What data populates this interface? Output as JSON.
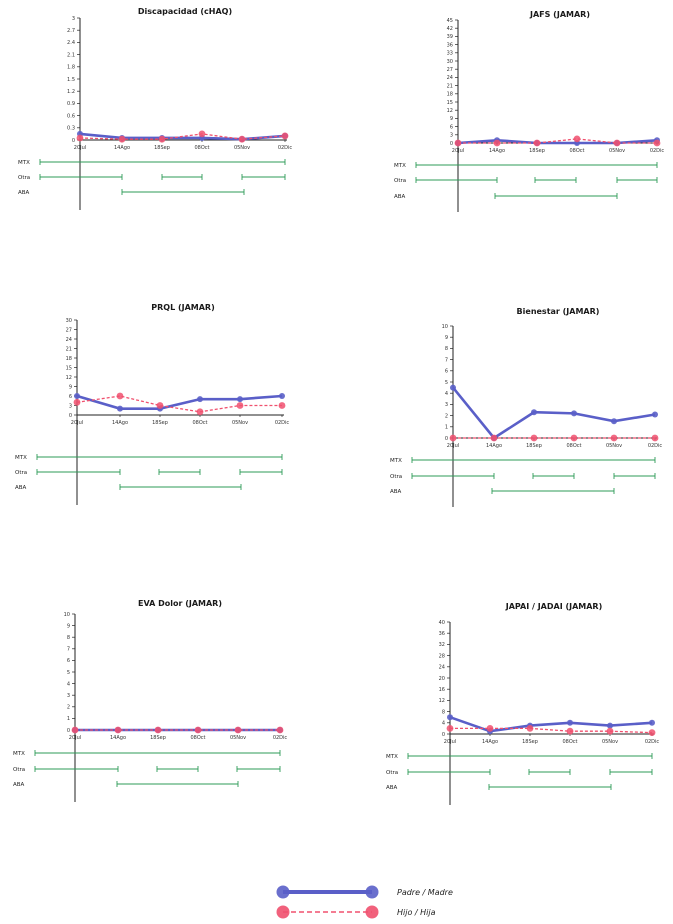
{
  "chart_data": [
    {
      "type": "line",
      "title": "Discapacidad (cHAQ)",
      "yticks": [
        "0",
        "0.3",
        "0.6",
        "0.9",
        "1.2",
        "1.5",
        "1.8",
        "2.1",
        "2.4",
        "2.7",
        "3"
      ],
      "ylim": [
        0,
        3
      ],
      "categories": [
        "20Jul",
        "14Ago",
        "18Sep",
        "08Oct",
        "05Nov",
        "02Dic"
      ],
      "series": [
        {
          "name": "Padre / Madre",
          "values": [
            0.15,
            0.05,
            0.05,
            0.05,
            0.02,
            0.1
          ]
        },
        {
          "name": "Hijo / Hija",
          "values": [
            0.05,
            0.02,
            0.02,
            0.15,
            0.02,
            0.1
          ]
        }
      ],
      "treatments": [
        "MTX",
        "Otra",
        "ABA"
      ]
    },
    {
      "type": "line",
      "title": "JAFS (JAMAR)",
      "yticks": [
        "0",
        "3",
        "6",
        "9",
        "12",
        "15",
        "18",
        "21",
        "24",
        "27",
        "30",
        "33",
        "36",
        "39",
        "42",
        "45"
      ],
      "ylim": [
        0,
        45
      ],
      "categories": [
        "20Jul",
        "14Ago",
        "18Sep",
        "08Oct",
        "05Nov",
        "02Dic"
      ],
      "series": [
        {
          "name": "Padre / Madre",
          "values": [
            0,
            1,
            0,
            0,
            0,
            1
          ]
        },
        {
          "name": "Hijo / Hija",
          "values": [
            0,
            0,
            0,
            1.5,
            0,
            0
          ]
        }
      ],
      "treatments": [
        "MTX",
        "Otra",
        "ABA"
      ]
    },
    {
      "type": "line",
      "title": "PRQL (JAMAR)",
      "yticks": [
        "0",
        "3",
        "6",
        "9",
        "12",
        "15",
        "18",
        "21",
        "24",
        "27",
        "30"
      ],
      "ylim": [
        0,
        30
      ],
      "categories": [
        "20Jul",
        "14Ago",
        "18Sep",
        "08Oct",
        "05Nov",
        "02Dic"
      ],
      "series": [
        {
          "name": "Padre / Madre",
          "values": [
            6,
            2,
            2,
            5,
            5,
            6
          ]
        },
        {
          "name": "Hijo / Hija",
          "values": [
            4,
            6,
            3,
            1,
            3,
            3
          ]
        }
      ],
      "treatments": [
        "MTX",
        "Otra",
        "ABA"
      ]
    },
    {
      "type": "line",
      "title": "Bienestar (JAMAR)",
      "yticks": [
        "0",
        "1",
        "2",
        "3",
        "4",
        "5",
        "6",
        "7",
        "8",
        "9",
        "10"
      ],
      "ylim": [
        0,
        10
      ],
      "categories": [
        "20Jul",
        "14Ago",
        "18Sep",
        "08Oct",
        "05Nov",
        "02Dic"
      ],
      "series": [
        {
          "name": "Padre / Madre",
          "values": [
            4.5,
            0,
            2.3,
            2.2,
            1.5,
            2.1
          ]
        },
        {
          "name": "Hijo / Hija",
          "values": [
            0,
            0,
            0,
            0,
            0,
            0
          ]
        }
      ],
      "treatments": [
        "MTX",
        "Otra",
        "ABA"
      ]
    },
    {
      "type": "line",
      "title": "EVA Dolor (JAMAR)",
      "yticks": [
        "0",
        "1",
        "2",
        "3",
        "4",
        "5",
        "6",
        "7",
        "8",
        "9",
        "10"
      ],
      "ylim": [
        0,
        10
      ],
      "categories": [
        "20Jul",
        "14Ago",
        "18Sep",
        "08Oct",
        "05Nov",
        "02Dic"
      ],
      "series": [
        {
          "name": "Padre / Madre",
          "values": [
            0,
            0,
            0,
            0,
            0,
            0
          ]
        },
        {
          "name": "Hijo / Hija",
          "values": [
            0,
            0,
            0,
            0,
            0,
            0
          ]
        }
      ],
      "treatments": [
        "MTX",
        "Otra",
        "ABA"
      ]
    },
    {
      "type": "line",
      "title": "JAPAI / JADAI (JAMAR)",
      "yticks": [
        "0",
        "4",
        "8",
        "12",
        "16",
        "20",
        "24",
        "28",
        "32",
        "36",
        "40"
      ],
      "ylim": [
        0,
        40
      ],
      "categories": [
        "20Jul",
        "14Ago",
        "18Sep",
        "08Oct",
        "05Nov",
        "02Dic"
      ],
      "series": [
        {
          "name": "Padre / Madre",
          "values": [
            6,
            1,
            3,
            4,
            3,
            4
          ]
        },
        {
          "name": "Hijo / Hija",
          "values": [
            2,
            2,
            2,
            1,
            1,
            0.5
          ]
        }
      ],
      "treatments": [
        "MTX",
        "Otra",
        "ABA"
      ]
    }
  ],
  "legend": [
    {
      "label": "Padre / Madre",
      "color": "#5a5fc8"
    },
    {
      "label": "Hijo / Hija",
      "color": "#f0506e"
    }
  ],
  "colors": {
    "parent": "#5a5fc8",
    "child": "#f0506e",
    "treatment": "#2e9b57",
    "axis": "#222222"
  }
}
